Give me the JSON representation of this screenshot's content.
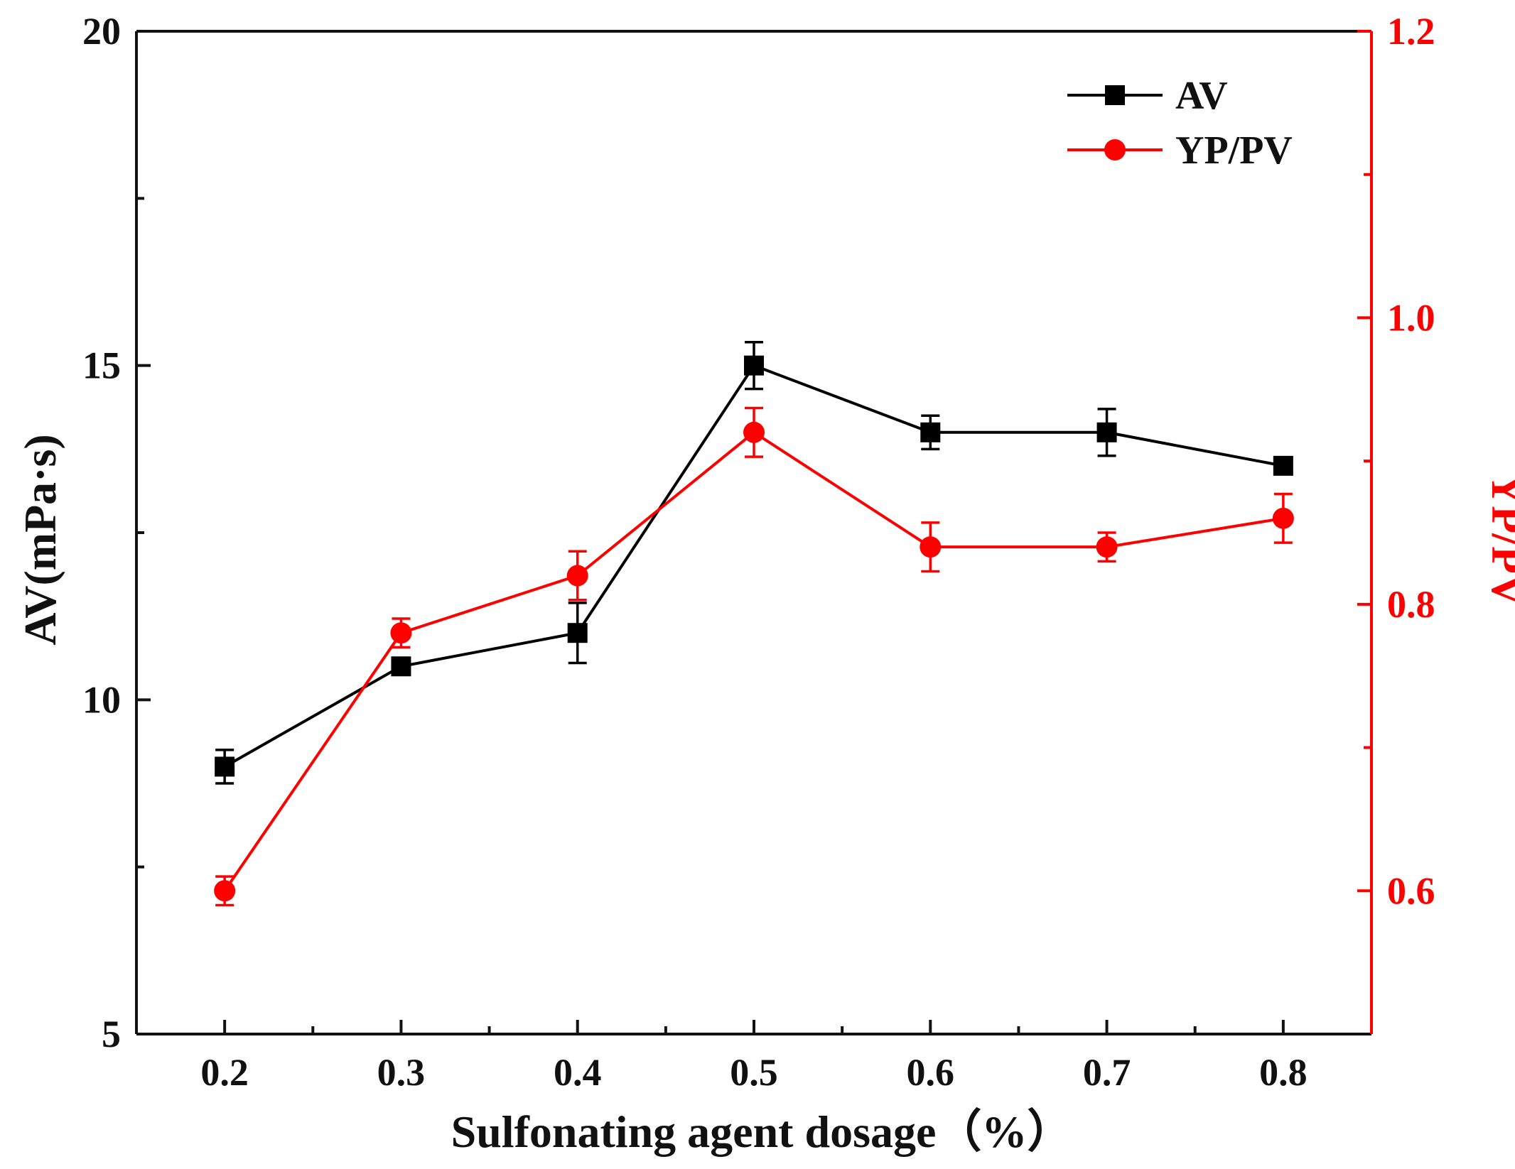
{
  "chart_data": {
    "type": "line",
    "x": [
      0.2,
      0.3,
      0.4,
      0.5,
      0.6,
      0.7,
      0.8
    ],
    "x_ticks": [
      "0.2",
      "0.3",
      "0.4",
      "0.5",
      "0.6",
      "0.7",
      "0.8"
    ],
    "xlim": [
      0.15,
      0.85
    ],
    "xlabel": "Sulfonating agent dosage（%）",
    "ylabel": "AV(mPa·s)",
    "ylim": [
      5,
      20
    ],
    "y_ticks": [
      "5",
      "10",
      "15",
      "20"
    ],
    "y2label": "YP/PV",
    "y2lim": [
      0.5,
      1.2
    ],
    "y2_ticks": [
      "0.6",
      "0.8",
      "1.0",
      "1.2"
    ],
    "grid": false,
    "legend_position": "top-right",
    "series": [
      {
        "name": "AV",
        "axis": "left",
        "marker": "square",
        "color": "#000000",
        "values": [
          9.0,
          10.5,
          11.0,
          15.0,
          14.0,
          14.0,
          13.5
        ],
        "errors": [
          0.25,
          0.08,
          0.45,
          0.35,
          0.25,
          0.35,
          0.12
        ]
      },
      {
        "name": "YP/PV",
        "axis": "right",
        "marker": "circle",
        "color": "#ff0000",
        "values": [
          0.6,
          0.78,
          0.82,
          0.92,
          0.84,
          0.84,
          0.86
        ],
        "errors": [
          0.01,
          0.01,
          0.017,
          0.017,
          0.017,
          0.01,
          0.017
        ]
      }
    ]
  }
}
